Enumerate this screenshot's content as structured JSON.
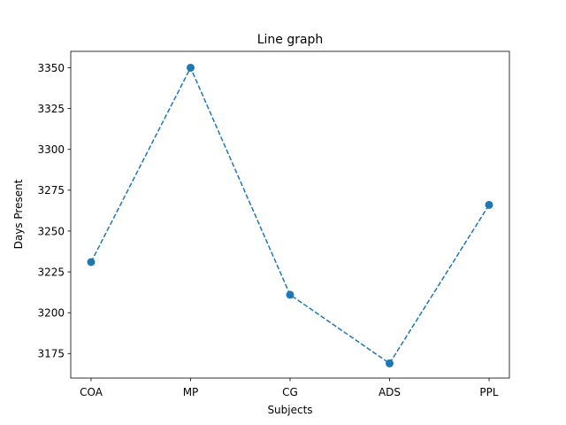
{
  "chart_data": {
    "type": "line",
    "title": "Line graph",
    "xlabel": "Subjects",
    "ylabel": "Days Present",
    "categories": [
      "COA",
      "MP",
      "CG",
      "ADS",
      "PPL"
    ],
    "series": [
      {
        "values": [
          3231,
          3350,
          3211,
          3169,
          3266
        ]
      }
    ],
    "ylim": [
      3160,
      3360
    ],
    "yticks": [
      3175,
      3200,
      3225,
      3250,
      3275,
      3300,
      3325,
      3350
    ],
    "line_style": "dashed",
    "marker": "circle",
    "color": "#1f77b4",
    "grid": false,
    "legend": "none"
  }
}
